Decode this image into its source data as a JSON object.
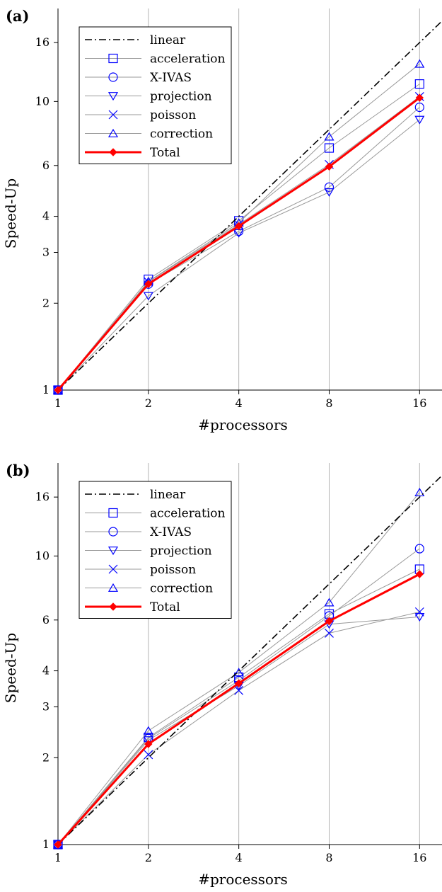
{
  "chart_data": [
    {
      "type": "line",
      "panel_label": "(a)",
      "xlabel": "#processors",
      "ylabel": "Speed-Up",
      "x_scale": "log",
      "y_scale": "log",
      "xlim": [
        1,
        19
      ],
      "ylim": [
        1,
        21
      ],
      "x_ticks": [
        1,
        2,
        4,
        8,
        16
      ],
      "y_ticks": [
        1,
        2,
        3,
        4,
        6,
        10,
        16
      ],
      "grid": "vertical",
      "legend_position": "top-left",
      "x": [
        1,
        2,
        4,
        8,
        16
      ],
      "series": [
        {
          "name": "linear",
          "style": "dashdot",
          "color": "#000000",
          "values": [
            1,
            2,
            4,
            8,
            16
          ]
        },
        {
          "name": "acceleration",
          "marker": "square",
          "color": "#0000ff",
          "values": [
            1,
            2.42,
            3.86,
            6.9,
            11.5
          ]
        },
        {
          "name": "X-IVAS",
          "marker": "circle",
          "color": "#0000ff",
          "values": [
            1,
            2.33,
            3.55,
            5.05,
            9.55
          ]
        },
        {
          "name": "projection",
          "marker": "triangle-down",
          "color": "#0000ff",
          "values": [
            1,
            2.12,
            3.5,
            4.85,
            8.65
          ]
        },
        {
          "name": "poisson",
          "marker": "x",
          "color": "#0000ff",
          "values": [
            1,
            2.37,
            3.75,
            6.05,
            10.4
          ]
        },
        {
          "name": "correction",
          "marker": "triangle-up",
          "color": "#0000ff",
          "values": [
            1,
            2.38,
            3.8,
            7.55,
            13.5
          ]
        },
        {
          "name": "Total",
          "marker": "diamond",
          "color": "#ff0000",
          "values": [
            1,
            2.33,
            3.7,
            5.95,
            10.3
          ]
        }
      ]
    },
    {
      "type": "line",
      "panel_label": "(b)",
      "xlabel": "#processors",
      "ylabel": "Speed-Up",
      "x_scale": "log",
      "y_scale": "log",
      "xlim": [
        1,
        19
      ],
      "ylim": [
        1,
        21
      ],
      "x_ticks": [
        1,
        2,
        4,
        8,
        16
      ],
      "y_ticks": [
        1,
        2,
        3,
        4,
        6,
        10,
        16
      ],
      "grid": "vertical",
      "legend_position": "top-left",
      "x": [
        1,
        2,
        4,
        8,
        16
      ],
      "series": [
        {
          "name": "linear",
          "style": "dashdot",
          "color": "#000000",
          "values": [
            1,
            2,
            4,
            8,
            16
          ]
        },
        {
          "name": "acceleration",
          "marker": "square",
          "color": "#0000ff",
          "values": [
            1,
            2.35,
            3.8,
            6.3,
            9.0
          ]
        },
        {
          "name": "X-IVAS",
          "marker": "circle",
          "color": "#0000ff",
          "values": [
            1,
            2.33,
            3.7,
            6.2,
            10.6
          ]
        },
        {
          "name": "projection",
          "marker": "triangle-down",
          "color": "#0000ff",
          "values": [
            1,
            2.3,
            3.55,
            5.8,
            6.15
          ]
        },
        {
          "name": "poisson",
          "marker": "x",
          "color": "#0000ff",
          "values": [
            1,
            2.05,
            3.42,
            5.4,
            6.4
          ]
        },
        {
          "name": "correction",
          "marker": "triangle-up",
          "color": "#0000ff",
          "values": [
            1,
            2.48,
            3.95,
            6.9,
            16.6
          ]
        },
        {
          "name": "Total",
          "marker": "diamond",
          "color": "#ff0000",
          "values": [
            1,
            2.23,
            3.62,
            5.95,
            8.65
          ]
        }
      ]
    }
  ]
}
